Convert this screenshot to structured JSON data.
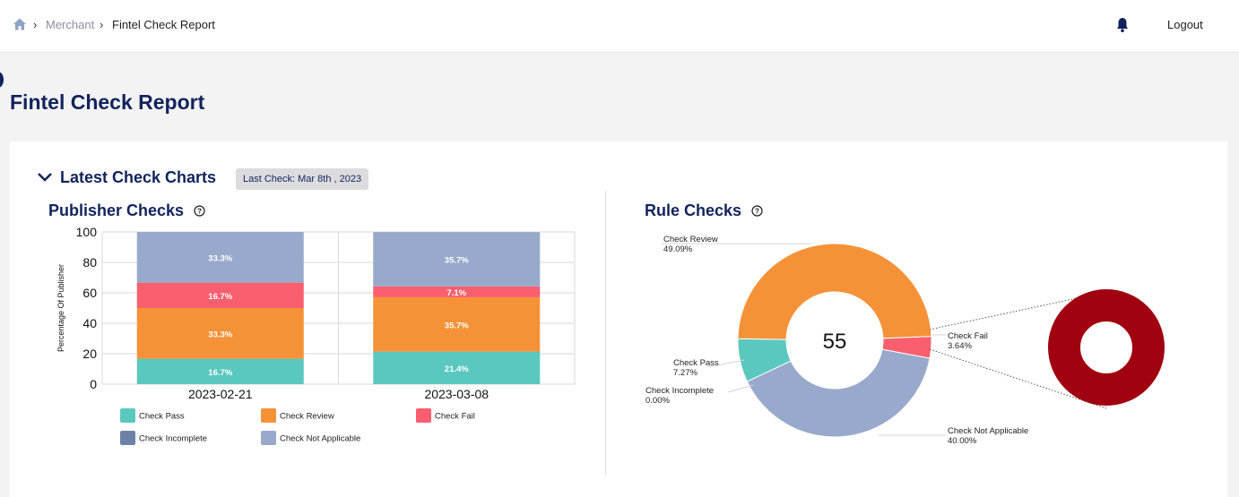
{
  "breadcrumb": {
    "home_icon": "home-icon",
    "items": [
      "Merchant",
      "Fintel Check Report"
    ]
  },
  "header": {
    "bell_icon": "bell-icon",
    "logout_label": "Logout"
  },
  "page": {
    "title": "Fintel Check Report"
  },
  "section": {
    "title": "Latest Check Charts",
    "last_check": "Last Check: Mar 8th , 2023",
    "toggle_icon": "chevron-down-icon"
  },
  "publisher_panel": {
    "title": "Publisher Checks",
    "help_icon": "help-circle-icon"
  },
  "rule_panel": {
    "title": "Rule Checks",
    "help_icon": "help-circle-icon"
  },
  "colors": {
    "pass": "#5ac8be",
    "review": "#f59237",
    "fail": "#f95f6e",
    "incomplete": "#6e82a8",
    "not_applicable": "#98a9cb",
    "fail_detail": "#a0000f"
  },
  "chart_data": [
    {
      "type": "bar",
      "stacked": true,
      "title": "Publisher Checks",
      "ylabel": "Percentage Of Publisher",
      "xlabel": "",
      "ylim": [
        0,
        100
      ],
      "yticks": [
        "0",
        "20",
        "40",
        "60",
        "80",
        "100"
      ],
      "categories": [
        "2023-02-21",
        "2023-03-08"
      ],
      "series": [
        {
          "name": "Check Pass",
          "key": "pass",
          "values": [
            16.7,
            21.4
          ],
          "labels": [
            "16.7%",
            "21.4%"
          ]
        },
        {
          "name": "Check Review",
          "key": "review",
          "values": [
            33.3,
            35.7
          ],
          "labels": [
            "33.3%",
            "35.7%"
          ]
        },
        {
          "name": "Check Fail",
          "key": "fail",
          "values": [
            16.7,
            7.1
          ],
          "labels": [
            "16.7%",
            "7.1%"
          ]
        },
        {
          "name": "Check Incomplete",
          "key": "incomplete",
          "values": [
            0,
            0
          ],
          "labels": [
            "",
            ""
          ]
        },
        {
          "name": "Check Not Applicable",
          "key": "not_applicable",
          "values": [
            33.3,
            35.7
          ],
          "labels": [
            "33.3%",
            "35.7%"
          ]
        }
      ],
      "legend": [
        "Check Pass",
        "Check Review",
        "Check Fail",
        "Check Incomplete",
        "Check Not Applicable"
      ]
    },
    {
      "type": "pie",
      "donut": true,
      "title": "Rule Checks",
      "center_label": "55",
      "slices": [
        {
          "name": "Check Fail",
          "key": "fail",
          "value": 3.64,
          "label": "3.64%"
        },
        {
          "name": "Check Not Applicable",
          "key": "not_applicable",
          "value": 40.0,
          "label": "40.00%"
        },
        {
          "name": "Check Incomplete",
          "key": "incomplete",
          "value": 0.0,
          "label": "0.00%"
        },
        {
          "name": "Check Pass",
          "key": "pass",
          "value": 7.27,
          "label": "7.27%"
        },
        {
          "name": "Check Review",
          "key": "review",
          "value": 49.09,
          "label": "49.09%"
        }
      ],
      "detail": {
        "of": "Check Fail",
        "values": [
          100
        ]
      }
    }
  ]
}
